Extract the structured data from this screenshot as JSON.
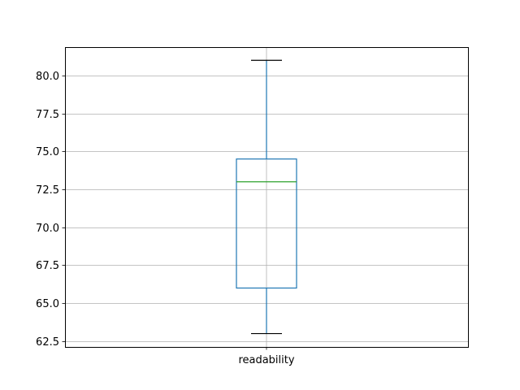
{
  "chart_data": {
    "type": "boxplot",
    "title": "",
    "xlabel": "",
    "ylabel": "",
    "categories": [
      "readability"
    ],
    "boxes": [
      {
        "name": "readability",
        "whisker_low": 63.0,
        "q1": 66.0,
        "median": 73.0,
        "q3": 74.5,
        "whisker_high": 81.0
      }
    ],
    "ylim": [
      62.12,
      81.87
    ],
    "yticks": [
      62.5,
      65.0,
      67.5,
      70.0,
      72.5,
      75.0,
      77.5,
      80.0
    ],
    "ytick_labels": [
      "62.5",
      "65.0",
      "67.5",
      "70.0",
      "72.5",
      "75.0",
      "77.5",
      "80.0"
    ],
    "grid": true,
    "colors": {
      "box": "#1f77b4",
      "median": "#2ca02c",
      "whisker_cap": "#000000",
      "grid": "#b0b0b0"
    }
  }
}
